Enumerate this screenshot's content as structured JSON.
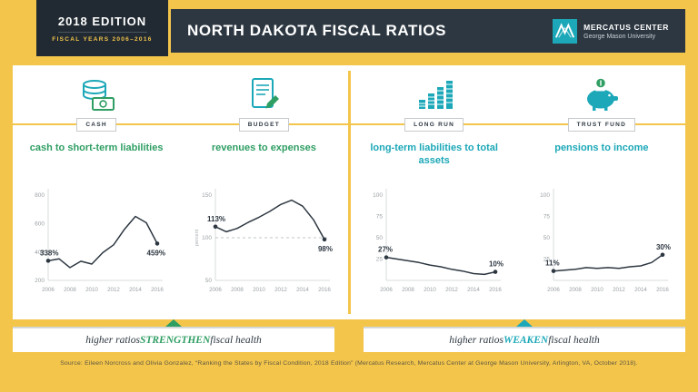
{
  "header": {
    "edition": "2018 EDITION",
    "fiscal_years": "FISCAL YEARS 2006–2016",
    "title": "NORTH DAKOTA FISCAL RATIOS",
    "logo_name": "MERCATUS CENTER",
    "logo_sub": "George Mason University"
  },
  "colors": {
    "yellow": "#F3C54B",
    "navy": "#2D3741",
    "teal": "#1CA8B8",
    "green": "#2F9E63"
  },
  "chart_data": [
    {
      "type": "line",
      "category": "CASH",
      "title": "cash to short-term liabilities",
      "group": "strengthen",
      "icon": "cash-icon",
      "x": [
        2006,
        2007,
        2008,
        2009,
        2010,
        2011,
        2012,
        2013,
        2014,
        2015,
        2016
      ],
      "values": [
        338,
        352,
        290,
        335,
        315,
        395,
        450,
        560,
        650,
        605,
        459
      ],
      "ylim": [
        200,
        800
      ],
      "yticks": [
        200,
        400,
        600,
        800
      ],
      "xticks": [
        2006,
        2008,
        2010,
        2012,
        2014,
        2016
      ],
      "annotations": [
        {
          "index": 0,
          "text": "338%"
        },
        {
          "index": 10,
          "text": "459%"
        }
      ]
    },
    {
      "type": "line",
      "category": "BUDGET",
      "title": "revenues to expenses",
      "group": "strengthen",
      "icon": "budget-icon",
      "x": [
        2006,
        2007,
        2008,
        2009,
        2010,
        2011,
        2012,
        2013,
        2014,
        2015,
        2016
      ],
      "values": [
        113,
        107,
        111,
        118,
        124,
        131,
        139,
        144,
        137,
        121,
        98
      ],
      "ylim": [
        50,
        150
      ],
      "yticks": [
        50,
        100,
        150
      ],
      "xticks": [
        2006,
        2008,
        2010,
        2012,
        2014,
        2016
      ],
      "baseline": 100,
      "ylabel": "percent",
      "annotations": [
        {
          "index": 0,
          "text": "113%"
        },
        {
          "index": 10,
          "text": "98%"
        }
      ]
    },
    {
      "type": "line",
      "category": "LONG RUN",
      "title": "long-term liabilities to total assets",
      "group": "weaken",
      "icon": "long-run-icon",
      "x": [
        2006,
        2007,
        2008,
        2009,
        2010,
        2011,
        2012,
        2013,
        2014,
        2015,
        2016
      ],
      "values": [
        27,
        25,
        23,
        21,
        18,
        16,
        13,
        11,
        8,
        7,
        10
      ],
      "ylim": [
        0,
        100
      ],
      "yticks": [
        25,
        50,
        75,
        100
      ],
      "xticks": [
        2006,
        2008,
        2010,
        2012,
        2014,
        2016
      ],
      "annotations": [
        {
          "index": 0,
          "text": "27%"
        },
        {
          "index": 10,
          "text": "10%"
        }
      ]
    },
    {
      "type": "line",
      "category": "TRUST FUND",
      "title": "pensions to income",
      "group": "weaken",
      "icon": "trust-fund-icon",
      "x": [
        2006,
        2007,
        2008,
        2009,
        2010,
        2011,
        2012,
        2013,
        2014,
        2015,
        2016
      ],
      "values": [
        11,
        12,
        13,
        15,
        14,
        15,
        14,
        16,
        17,
        21,
        30
      ],
      "ylim": [
        0,
        100
      ],
      "yticks": [
        25,
        50,
        75,
        100
      ],
      "xticks": [
        2006,
        2008,
        2010,
        2012,
        2014,
        2016
      ],
      "annotations": [
        {
          "index": 0,
          "text": "11%"
        },
        {
          "index": 10,
          "text": "30%"
        }
      ]
    }
  ],
  "footers": [
    {
      "prefix": "higher ratios ",
      "verb": "STRENGTHEN",
      "suffix": " fiscal health"
    },
    {
      "prefix": "higher ratios ",
      "verb": "WEAKEN",
      "suffix": " fiscal health"
    }
  ],
  "source": "Source: Eileen Norcross and Olivia Gonzalez, “Ranking the States by Fiscal Condition, 2018 Edition” (Mercatus Research, Mercatus Center at George Mason University, Arlington, VA, October 2018)."
}
